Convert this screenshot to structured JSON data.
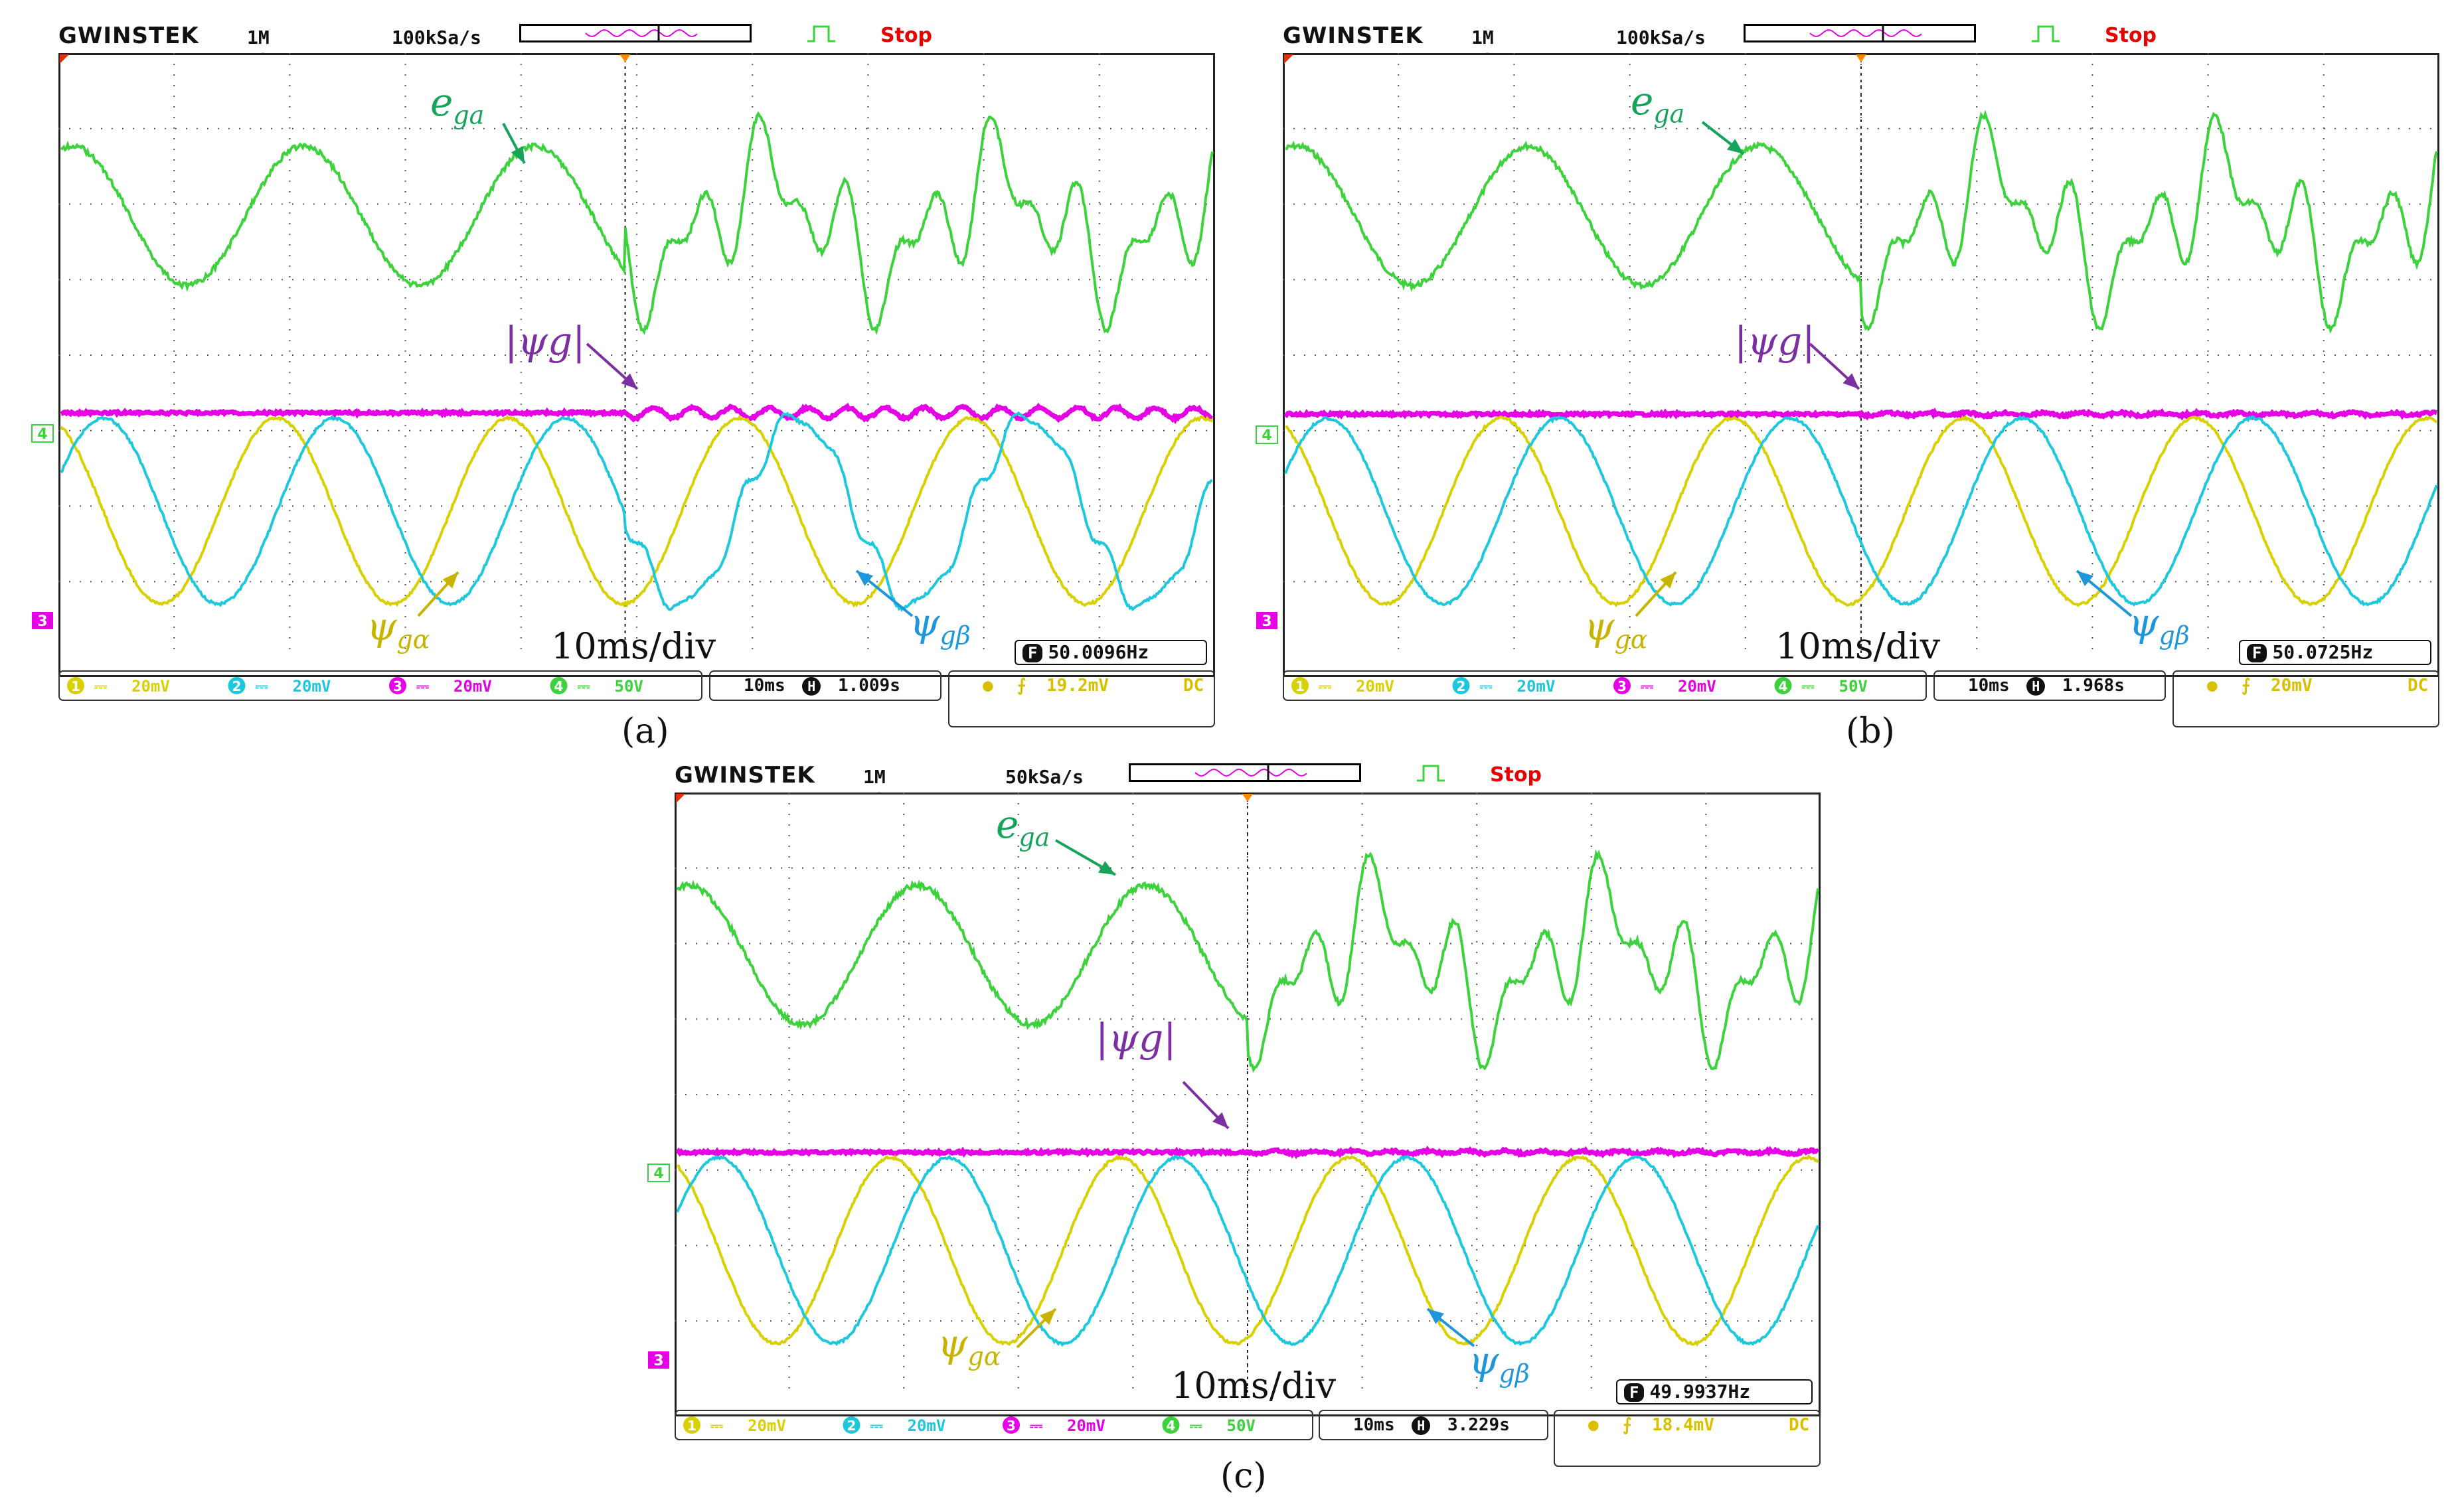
{
  "brand": "GWINSTEK",
  "tdiv_label": "10ms/div",
  "annotations": {
    "e": "e",
    "e_sub": "ga",
    "mag": "|ψg|",
    "alpha": "ψ",
    "alpha_sub": "gα",
    "beta": "ψ",
    "beta_sub": "gβ"
  },
  "colors": {
    "ch1": "#d8d000",
    "ch2": "#1ec8dc",
    "ch3": "#e600e6",
    "ch4": "#3cd23c",
    "anno_e": "#16a35a",
    "anno_mag": "#7b2fa0",
    "anno_alpha": "#c8b400",
    "anno_beta": "#1e96dc"
  },
  "panels": [
    {
      "label": "(a)",
      "pts": "1M pts",
      "rate": "100kSa/s",
      "state": "Stop",
      "ch_scales": [
        "20mV",
        "20mV",
        "20mV",
        "50V"
      ],
      "timebase": "10ms",
      "hpos": "1.009s",
      "trig_level": "19.2mV",
      "coupling": "DC",
      "freq": "50.0096Hz"
    },
    {
      "label": "(b)",
      "pts": "1M pts",
      "rate": "100kSa/s",
      "state": "Stop",
      "ch_scales": [
        "20mV",
        "20mV",
        "20mV",
        "50V"
      ],
      "timebase": "10ms",
      "hpos": "1.968s",
      "trig_level": "20mV",
      "coupling": "DC",
      "freq": "50.0725Hz"
    },
    {
      "label": "(c)",
      "pts": "1M pts",
      "rate": "50kSa/s",
      "state": "Stop",
      "ch_scales": [
        "20mV",
        "20mV",
        "20mV",
        "50V"
      ],
      "timebase": "10ms",
      "hpos": "3.229s",
      "trig_level": "18.4mV",
      "coupling": "DC",
      "freq": "49.9937Hz"
    }
  ],
  "chart_data": [
    {
      "type": "line",
      "panel": "(a)",
      "xlabel": "10ms/div",
      "divisions_x": 10,
      "divisions_y": 8,
      "series": [
        {
          "name": "e_ga",
          "channel": 4,
          "description": "50 Hz sine before fault, distorted after"
        },
        {
          "name": "|ψg|",
          "channel": 3,
          "description": "nearly constant, oscillating after fault"
        },
        {
          "name": "ψgα",
          "channel": 1,
          "description": "50 Hz sine"
        },
        {
          "name": "ψgβ",
          "channel": 2,
          "description": "50 Hz sine, distorted after fault"
        }
      ]
    },
    {
      "type": "line",
      "panel": "(b)",
      "xlabel": "10ms/div",
      "divisions_x": 10,
      "divisions_y": 8,
      "series": [
        {
          "name": "e_ga",
          "channel": 4
        },
        {
          "name": "|ψg|",
          "channel": 3
        },
        {
          "name": "ψgα",
          "channel": 1
        },
        {
          "name": "ψgβ",
          "channel": 2
        }
      ]
    },
    {
      "type": "line",
      "panel": "(c)",
      "xlabel": "10ms/div",
      "divisions_x": 10,
      "divisions_y": 8,
      "series": [
        {
          "name": "e_ga",
          "channel": 4
        },
        {
          "name": "|ψg|",
          "channel": 3
        },
        {
          "name": "ψgα",
          "channel": 1
        },
        {
          "name": "ψgβ",
          "channel": 2
        }
      ]
    }
  ]
}
